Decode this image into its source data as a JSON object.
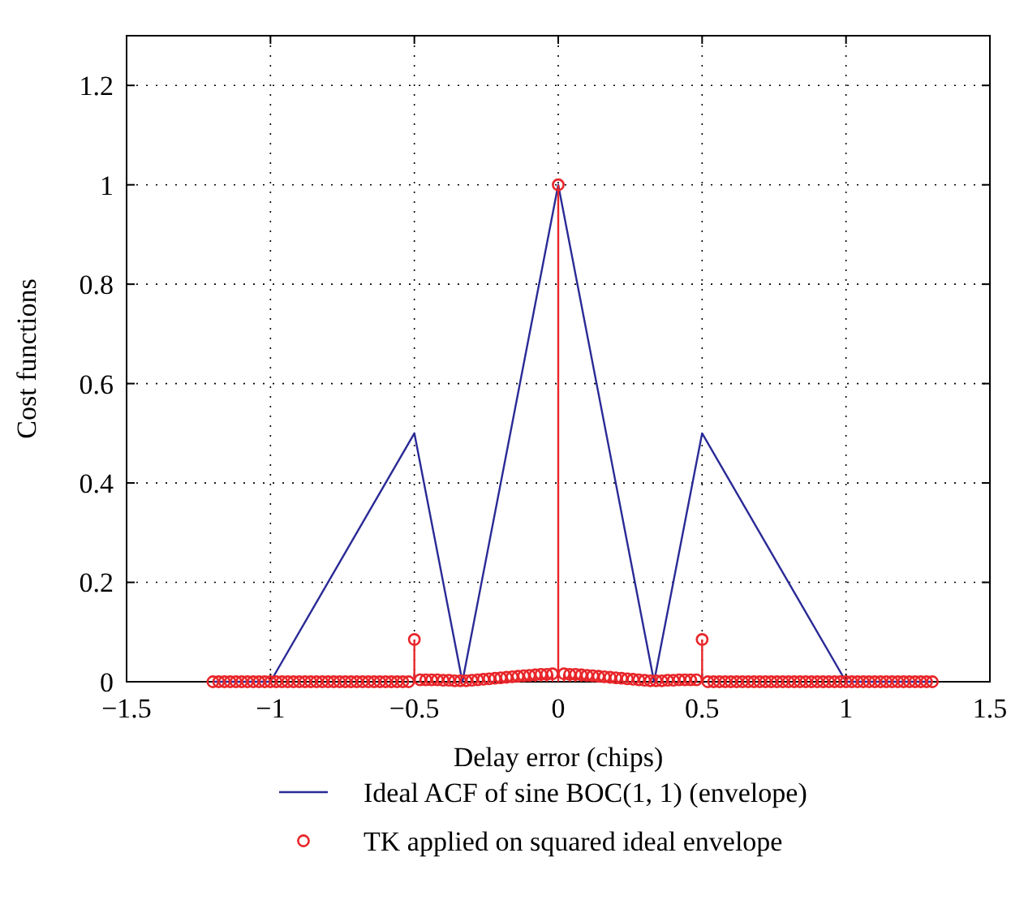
{
  "chart_data": {
    "type": "line",
    "xlabel": "Delay error (chips)",
    "ylabel": "Cost functions",
    "xlim": [
      -1.5,
      1.5
    ],
    "ylim": [
      0,
      1.3
    ],
    "xticks": [
      {
        "value": -1.5,
        "label": "−1.5"
      },
      {
        "value": -1,
        "label": "−1"
      },
      {
        "value": -0.5,
        "label": "−0.5"
      },
      0,
      0.5,
      1,
      1.5
    ],
    "yticks": [
      0,
      0.2,
      0.4,
      0.6,
      0.8,
      1,
      1.2
    ],
    "grid": true,
    "legend": "bottom",
    "series": [
      {
        "name": "Ideal ACF of sine BOC(1, 1) (envelope)",
        "color": "#2a2a96",
        "marker": "none",
        "x": [
          -1.2,
          -1,
          -0.5,
          -0.333,
          0,
          0.333,
          0.5,
          1,
          1.3
        ],
        "values": [
          0,
          0,
          0.5,
          0,
          1,
          0,
          0.5,
          0,
          0
        ]
      },
      {
        "name": "TK applied on squared ideal envelope",
        "type": "lollipop",
        "color": "#e8262a",
        "marker": "circle",
        "x": [
          -1.2,
          -1.18,
          -1.16,
          -1.14,
          -1.12,
          -1.1,
          -1.08,
          -1.06,
          -1.04,
          -1.02,
          -1,
          -0.98,
          -0.96,
          -0.94,
          -0.92,
          -0.9,
          -0.88,
          -0.86,
          -0.84,
          -0.82,
          -0.8,
          -0.78,
          -0.76,
          -0.74,
          -0.72,
          -0.7,
          -0.68,
          -0.66,
          -0.64,
          -0.62,
          -0.6,
          -0.58,
          -0.56,
          -0.54,
          -0.52,
          -0.5,
          -0.48,
          -0.46,
          -0.44,
          -0.42,
          -0.4,
          -0.38,
          -0.36,
          -0.34,
          -0.32,
          -0.3,
          -0.28,
          -0.26,
          -0.24,
          -0.22,
          -0.2,
          -0.18,
          -0.16,
          -0.14,
          -0.12,
          -0.1,
          -0.08,
          -0.06,
          -0.04,
          -0.02,
          0,
          0.02,
          0.04,
          0.06,
          0.08,
          0.1,
          0.12,
          0.14,
          0.16,
          0.18,
          0.2,
          0.22,
          0.24,
          0.26,
          0.28,
          0.3,
          0.32,
          0.34,
          0.36,
          0.38,
          0.4,
          0.42,
          0.44,
          0.46,
          0.48,
          0.5,
          0.52,
          0.54,
          0.56,
          0.58,
          0.6,
          0.62,
          0.64,
          0.66,
          0.68,
          0.7,
          0.72,
          0.74,
          0.76,
          0.78,
          0.8,
          0.82,
          0.84,
          0.86,
          0.88,
          0.9,
          0.92,
          0.94,
          0.96,
          0.98,
          1,
          1.02,
          1.04,
          1.06,
          1.08,
          1.1,
          1.12,
          1.14,
          1.16,
          1.18,
          1.2,
          1.22,
          1.24,
          1.26,
          1.28,
          1.3
        ],
        "values": [
          0,
          0,
          0,
          0,
          0,
          0,
          0,
          0,
          0,
          0,
          0,
          0,
          0,
          0,
          0,
          0,
          0,
          0,
          0,
          0,
          0,
          0,
          0,
          0,
          0,
          0,
          0,
          0,
          0,
          0,
          0,
          0,
          0,
          0,
          0,
          0.085,
          0.004,
          0.004,
          0.004,
          0.004,
          0.003,
          0.003,
          0.002,
          0.002,
          0.002,
          0.003,
          0.004,
          0.005,
          0.006,
          0.007,
          0.008,
          0.009,
          0.01,
          0.011,
          0.012,
          0.013,
          0.014,
          0.015,
          0.015,
          0.016,
          1,
          0.016,
          0.015,
          0.015,
          0.014,
          0.013,
          0.012,
          0.011,
          0.01,
          0.009,
          0.008,
          0.007,
          0.006,
          0.005,
          0.004,
          0.003,
          0.002,
          0.002,
          0.002,
          0.003,
          0.003,
          0.004,
          0.004,
          0.004,
          0.004,
          0.085,
          0,
          0,
          0,
          0,
          0,
          0,
          0,
          0,
          0,
          0,
          0,
          0,
          0,
          0,
          0,
          0,
          0,
          0,
          0,
          0,
          0,
          0,
          0,
          0,
          0,
          0,
          0,
          0,
          0,
          0,
          0,
          0,
          0,
          0,
          0,
          0,
          0,
          0,
          0,
          0
        ]
      }
    ]
  }
}
